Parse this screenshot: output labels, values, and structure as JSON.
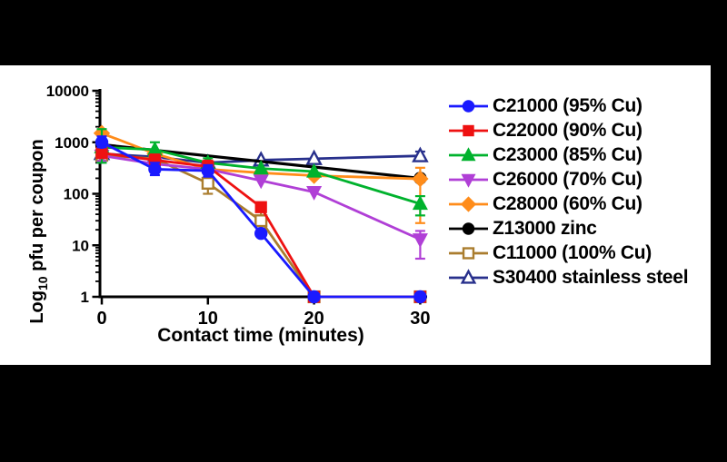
{
  "figure": {
    "frame_color": "#000000",
    "panel_background": "#ffffff"
  },
  "chart_data": {
    "type": "line",
    "title": "",
    "xlabel": "Contact time (minutes)",
    "ylabel": "Log10 pfu per coupon",
    "ylabel_parts": {
      "prefix": "Log",
      "sub": "10",
      "rest": " pfu per coupon"
    },
    "xlim": [
      0,
      30.7
    ],
    "ylim": [
      1,
      10000
    ],
    "yscale": "log",
    "grid": false,
    "legend_position": "right",
    "axis_color": "#000000",
    "xticks": [
      0,
      10,
      20,
      30
    ],
    "xticklabels": [
      "0",
      "10",
      "20",
      "30"
    ],
    "ytick_values": [
      10000,
      1000,
      100,
      10,
      1
    ],
    "yticklabels": [
      "10000",
      "1000",
      "100",
      "10",
      "1"
    ],
    "series": [
      {
        "id": "c21000",
        "name": "C21000 (95% Cu)",
        "color": "#1a1aff",
        "marker": "circle",
        "fill": "filled",
        "x": [
          0,
          5,
          10,
          15,
          20,
          30
        ],
        "y": [
          1000,
          300,
          280,
          17,
          1,
          1
        ],
        "err": [
          [
            800,
            1300
          ],
          [
            230,
            400
          ],
          [
            215,
            360
          ],
          null,
          null,
          null
        ]
      },
      {
        "id": "c22000",
        "name": "C22000 (90% Cu)",
        "color": "#ee1111",
        "marker": "square",
        "fill": "filled",
        "x": [
          0,
          5,
          10,
          15,
          20,
          30
        ],
        "y": [
          620,
          450,
          340,
          55,
          1,
          1
        ],
        "err": [
          [
            500,
            780
          ],
          [
            340,
            580
          ],
          [
            260,
            440
          ],
          null,
          null,
          null
        ]
      },
      {
        "id": "c23000",
        "name": "C23000 (85% Cu)",
        "color": "#00b22d",
        "marker": "triangle-up",
        "fill": "filled",
        "x": [
          0,
          5,
          10,
          15,
          20,
          30
        ],
        "y": [
          800,
          720,
          400,
          310,
          270,
          64
        ],
        "err": [
          [
            400,
            1800
          ],
          [
            520,
            1000
          ],
          [
            330,
            490
          ],
          null,
          null,
          [
            38,
            90
          ]
        ]
      },
      {
        "id": "c26000",
        "name": "C26000 (70% Cu)",
        "color": "#b03fd6",
        "marker": "triangle-down",
        "fill": "filled",
        "x": [
          0,
          5,
          10,
          15,
          20,
          30
        ],
        "y": [
          550,
          380,
          300,
          180,
          108,
          13
        ],
        "err": [
          [
            430,
            700
          ],
          null,
          null,
          null,
          null,
          [
            5.5,
            19
          ]
        ]
      },
      {
        "id": "c28000",
        "name": "C28000 (60% Cu)",
        "color": "#ff8c1a",
        "marker": "diamond",
        "fill": "filled",
        "x": [
          0,
          5,
          10,
          15,
          20,
          30
        ],
        "y": [
          1500,
          600,
          300,
          255,
          225,
          195
        ],
        "err": [
          null,
          null,
          null,
          null,
          null,
          [
            27,
            320
          ]
        ]
      },
      {
        "id": "z13000",
        "name": "Z13000 zinc",
        "color": "#000000",
        "marker": "circle",
        "fill": "filled",
        "x": [
          0,
          30
        ],
        "y": [
          900,
          200
        ],
        "err": [
          null,
          null
        ]
      },
      {
        "id": "c11000",
        "name": "C11000 (100% Cu)",
        "color": "#aa7d2e",
        "marker": "square",
        "fill": "open",
        "x": [
          0,
          5,
          10,
          15,
          20,
          30
        ],
        "y": [
          560,
          480,
          160,
          30,
          1,
          1
        ],
        "err": [
          null,
          null,
          [
            100,
            250
          ],
          [
            20,
            45
          ],
          null,
          null
        ]
      },
      {
        "id": "s30400",
        "name": "S30400 stainless steel",
        "color": "#28308c",
        "marker": "triangle-up",
        "fill": "open",
        "x": [
          0,
          5,
          10,
          15,
          20,
          30
        ],
        "y": [
          600,
          520,
          400,
          450,
          480,
          545
        ],
        "err": [
          null,
          null,
          null,
          null,
          null,
          [
            450,
            660
          ]
        ]
      }
    ]
  }
}
